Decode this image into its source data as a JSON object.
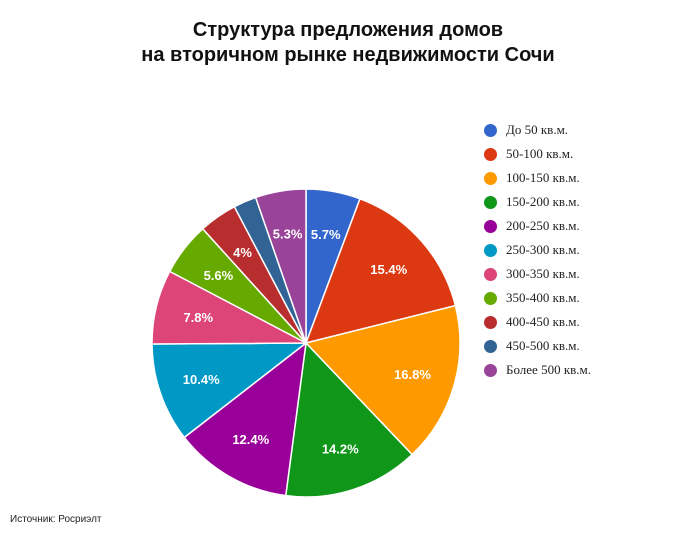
{
  "title": {
    "line1": "Структура предложения домов",
    "line2": "на вторичном рынке недвижимости Сочи"
  },
  "source": "Источник: Росриэлт",
  "chart_data": {
    "type": "pie",
    "title": "Структура предложения домов на вторичном рынке недвижимости Сочи",
    "legend_position": "right",
    "categories": [
      "До 50 кв.м.",
      "50-100 кв.м.",
      "100-150 кв.м.",
      "150-200 кв.м.",
      "200-250 кв.м.",
      "250-300 кв.м.",
      "300-350 кв.м.",
      "350-400 кв.м.",
      "400-450 кв.м.",
      "450-500 кв.м.",
      "Более 500 кв.м."
    ],
    "values": [
      5.7,
      15.4,
      16.8,
      14.2,
      12.4,
      10.4,
      7.8,
      5.6,
      4,
      2.4,
      5.3
    ],
    "data_labels": [
      "5.7%",
      "15.4%",
      "16.8%",
      "14.2%",
      "12.4%",
      "10.4%",
      "7.8%",
      "5.6%",
      "4%",
      "",
      "5.3%"
    ],
    "colors": [
      "#3366cc",
      "#dc3912",
      "#ff9900",
      "#109618",
      "#990099",
      "#0099c6",
      "#dd4477",
      "#66aa00",
      "#b82e2e",
      "#316395",
      "#994499"
    ]
  }
}
